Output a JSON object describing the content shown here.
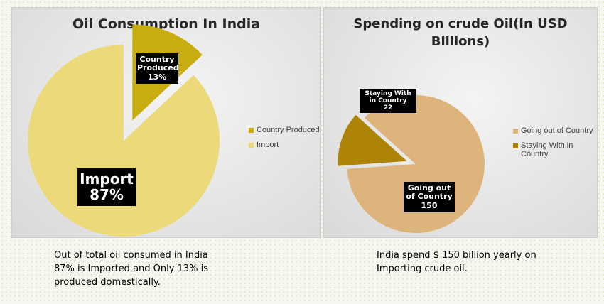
{
  "chart_data": [
    {
      "type": "pie",
      "title": "Oil Consumption In India",
      "categories": [
        "Country Produced",
        "Import"
      ],
      "values": [
        13,
        87
      ],
      "colors": [
        "#c7ad0f",
        "#ecd97a"
      ],
      "exploded": "Country Produced",
      "data_labels": [
        {
          "name": "Country Produced",
          "value": "13%"
        },
        {
          "name": "Import",
          "value": "87%"
        }
      ],
      "legend": "right"
    },
    {
      "type": "pie",
      "title": "Spending on crude Oil(In USD Billions)",
      "categories": [
        "Going out of Country",
        "Staying With in Country"
      ],
      "values": [
        150,
        22
      ],
      "colors": [
        "#ddb57c",
        "#ae8407"
      ],
      "exploded": "Staying With in Country",
      "data_labels": [
        {
          "name": "Going out of Country",
          "value": "150"
        },
        {
          "name": "Staying With in Country",
          "value": "22"
        }
      ],
      "legend": "right"
    }
  ],
  "captions": {
    "left": "Out of total oil consumed in India 87% is Imported and Only 13% is produced domestically.",
    "right": "India spend $ 150 billion yearly on Importing crude oil."
  }
}
